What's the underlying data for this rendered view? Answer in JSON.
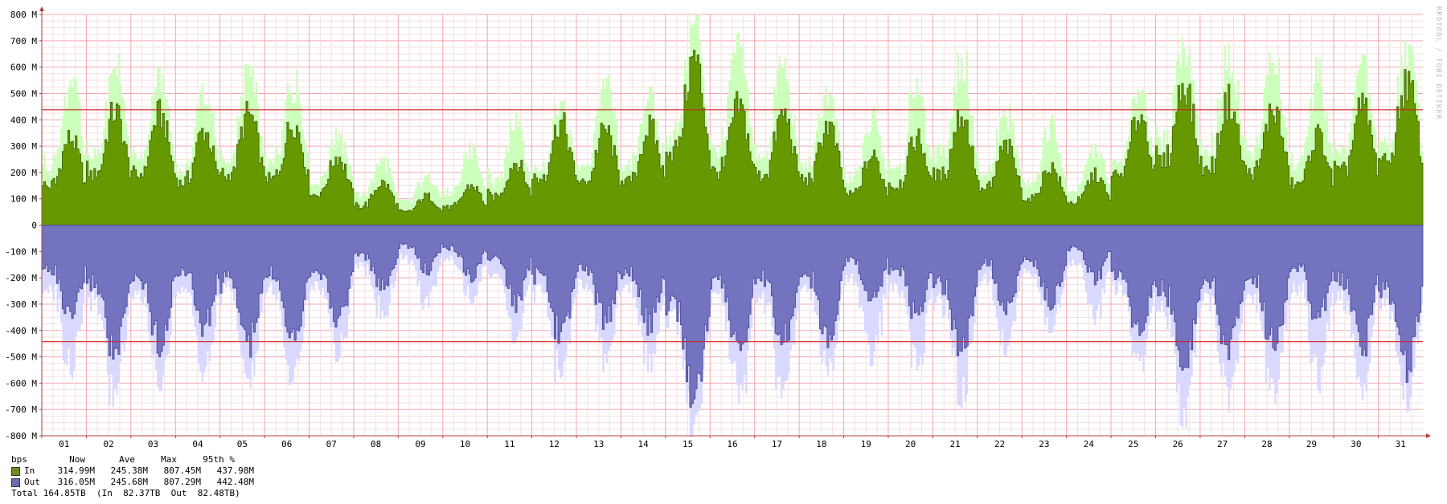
{
  "chart_data": {
    "type": "area",
    "title": "",
    "xlabel": "",
    "ylabel": "",
    "ylim": [
      -800,
      800
    ],
    "yticks": [
      {
        "v": 800,
        "label": "800 M"
      },
      {
        "v": 700,
        "label": "700 M"
      },
      {
        "v": 600,
        "label": "600 M"
      },
      {
        "v": 500,
        "label": "500 M"
      },
      {
        "v": 400,
        "label": "400 M"
      },
      {
        "v": 300,
        "label": "300 M"
      },
      {
        "v": 200,
        "label": "200 M"
      },
      {
        "v": 100,
        "label": "100 M"
      },
      {
        "v": 0,
        "label": "0"
      },
      {
        "v": -100,
        "label": "-100 M"
      },
      {
        "v": -200,
        "label": "-200 M"
      },
      {
        "v": -300,
        "label": "-300 M"
      },
      {
        "v": -400,
        "label": "-400 M"
      },
      {
        "v": -500,
        "label": "-500 M"
      },
      {
        "v": -600,
        "label": "-600 M"
      },
      {
        "v": -700,
        "label": "-700 M"
      },
      {
        "v": -800,
        "label": "-800 M"
      }
    ],
    "xticks": [
      "01",
      "02",
      "03",
      "04",
      "05",
      "06",
      "07",
      "08",
      "09",
      "10",
      "11",
      "12",
      "13",
      "14",
      "15",
      "16",
      "17",
      "18",
      "19",
      "20",
      "21",
      "22",
      "23",
      "24",
      "25",
      "26",
      "27",
      "28",
      "29",
      "30",
      "31"
    ],
    "daily_in_avg": [
      330,
      430,
      420,
      360,
      420,
      390,
      260,
      160,
      110,
      150,
      240,
      390,
      360,
      370,
      630,
      450,
      420,
      380,
      260,
      330,
      420,
      300,
      220,
      190,
      420,
      540,
      470,
      440,
      340,
      450,
      540
    ],
    "daily_in_max": [
      600,
      650,
      600,
      540,
      610,
      600,
      370,
      260,
      200,
      320,
      430,
      470,
      570,
      530,
      805,
      740,
      650,
      530,
      450,
      560,
      720,
      460,
      420,
      310,
      560,
      770,
      690,
      680,
      640,
      650,
      710
    ],
    "daily_out_avg": [
      360,
      490,
      440,
      380,
      450,
      410,
      360,
      240,
      170,
      190,
      290,
      420,
      360,
      380,
      650,
      470,
      440,
      420,
      290,
      350,
      500,
      320,
      290,
      200,
      410,
      550,
      480,
      460,
      360,
      460,
      540
    ],
    "daily_out_max": [
      610,
      690,
      630,
      600,
      620,
      610,
      520,
      360,
      320,
      300,
      470,
      610,
      560,
      560,
      805,
      700,
      700,
      570,
      560,
      580,
      720,
      500,
      410,
      380,
      560,
      770,
      710,
      680,
      640,
      680,
      710
    ],
    "series": [
      {
        "name": "In",
        "color": "#669900",
        "max_color": "#ccffbb"
      },
      {
        "name": "Out",
        "color": "#7373bf",
        "max_color": "#d9d9ff"
      }
    ],
    "threshold_lines": [
      437.98,
      -442.48
    ],
    "threshold_color": "#cc2222"
  },
  "legend": {
    "header": [
      "bps",
      "Now",
      "Ave",
      "Max",
      "95th %"
    ],
    "rows": [
      {
        "name": "In",
        "color": "#6b8e23",
        "now": "314.99M",
        "ave": "245.38M",
        "max": "807.45M",
        "p95": "437.98M"
      },
      {
        "name": "Out",
        "color": "#6b6bb0",
        "now": "316.05M",
        "ave": "245.68M",
        "max": "807.29M",
        "p95": "442.48M"
      }
    ],
    "total": "Total 164.85TB  (In  82.37TB  Out  82.48TB)"
  },
  "watermark": "RRDTOOL / TOBI OETIKER"
}
